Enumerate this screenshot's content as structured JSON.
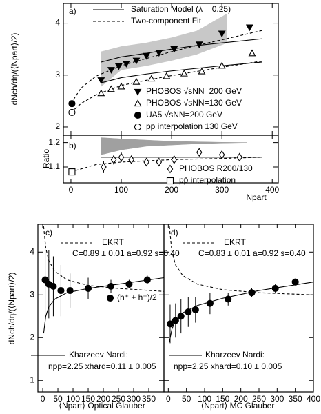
{
  "chart_data": [
    {
      "type": "scatter",
      "panel_label": "a)",
      "ylabel": "dNch/dη/(⟨Npart⟩/2)",
      "xlim": [
        -15,
        412
      ],
      "ylim": [
        1.84,
        4.38
      ],
      "xticks": [
        0,
        100,
        200,
        300,
        400
      ],
      "yticks": [
        2,
        3,
        4
      ],
      "bands": [
        {
          "color": "#c8c8c8",
          "x": [
            60,
            100,
            150,
            200,
            250,
            310
          ],
          "lower": [
            2.78,
            3.1,
            3.18,
            3.28,
            3.4,
            3.62
          ],
          "upper": [
            3.45,
            3.55,
            3.62,
            3.72,
            3.85,
            4.18
          ]
        }
      ],
      "lines": [
        {
          "name": "Saturation Model (λ = 0.25)",
          "dash": false,
          "x": [
            60,
            100,
            150,
            200,
            250,
            300,
            380
          ],
          "values": [
            3.25,
            3.35,
            3.42,
            3.5,
            3.57,
            3.62,
            3.7
          ]
        },
        {
          "name": "Two-component Fit",
          "dash": true,
          "x": [
            0,
            20,
            50,
            100,
            150,
            200,
            250,
            300,
            380
          ],
          "values": [
            2.45,
            2.75,
            2.98,
            3.18,
            3.32,
            3.45,
            3.57,
            3.68,
            3.86
          ]
        },
        {
          "dash": false,
          "x": [
            60,
            100,
            150,
            200,
            250,
            300,
            380
          ],
          "values": [
            2.85,
            2.95,
            3.02,
            3.08,
            3.13,
            3.18,
            3.25
          ]
        },
        {
          "dash": true,
          "x": [
            0,
            20,
            50,
            100,
            150,
            200,
            250,
            300,
            380
          ],
          "values": [
            2.28,
            2.45,
            2.62,
            2.8,
            2.9,
            2.99,
            3.07,
            3.15,
            3.27
          ]
        }
      ],
      "series": [
        {
          "name": "PHOBOS √sNN=200 GeV",
          "marker": "triangle-down",
          "filled": true,
          "color": "#000000",
          "x": [
            60,
            80,
            95,
            110,
            130,
            150,
            175,
            205,
            255,
            300,
            355
          ],
          "values": [
            2.9,
            3.1,
            3.17,
            3.22,
            3.28,
            3.37,
            3.43,
            3.5,
            3.59,
            3.8,
            3.92
          ]
        },
        {
          "name": "PHOBOS √sNN=130 GeV",
          "marker": "triangle-up",
          "filled": false,
          "color": "#000000",
          "x": [
            60,
            80,
            100,
            130,
            160,
            190,
            225,
            260,
            300,
            360
          ],
          "values": [
            2.65,
            2.73,
            2.78,
            2.87,
            2.93,
            2.98,
            3.03,
            3.07,
            3.18,
            3.42
          ]
        },
        {
          "name": "UA5 √sNN=200 GeV",
          "marker": "circle",
          "filled": true,
          "color": "#000000",
          "x": [
            2
          ],
          "values": [
            2.45
          ]
        },
        {
          "name": "pp̄ interpolation 130 GeV",
          "marker": "circle",
          "filled": false,
          "color": "#000000",
          "x": [
            2
          ],
          "values": [
            2.28
          ]
        }
      ]
    },
    {
      "type": "scatter",
      "panel_label": "b)",
      "ylabel": "Ratio",
      "xlabel": "Npart",
      "xlim": [
        -15,
        412
      ],
      "ylim": [
        1.035,
        1.23
      ],
      "xticks": [
        0,
        100,
        200,
        300,
        400
      ],
      "yticks": [
        1.1,
        1.2
      ],
      "bands": [
        {
          "color": "#a0a0a0",
          "x": [
            60,
            100,
            150,
            200,
            250,
            300,
            350
          ],
          "lower": [
            1.15,
            1.17,
            1.185,
            1.19,
            1.195,
            1.198,
            1.2
          ],
          "upper": [
            1.22,
            1.215,
            1.21,
            1.205,
            1.203,
            1.201,
            1.2
          ]
        }
      ],
      "lines": [
        {
          "dash": false,
          "x": [
            60,
            380
          ],
          "values": [
            1.14,
            1.14
          ]
        },
        {
          "dash": true,
          "x": [
            0,
            50,
            100,
            150,
            200,
            300,
            380
          ],
          "values": [
            1.08,
            1.11,
            1.12,
            1.125,
            1.13,
            1.135,
            1.14
          ]
        }
      ],
      "series": [
        {
          "name": "PHOBOS R200/130",
          "marker": "diamond",
          "filled": false,
          "color": "#000000",
          "x": [
            65,
            85,
            100,
            120,
            150,
            175,
            205,
            255,
            300,
            335
          ],
          "values": [
            1.1,
            1.13,
            1.14,
            1.13,
            1.12,
            1.12,
            1.13,
            1.16,
            1.15,
            1.14
          ],
          "errors": [
            0.025,
            0.02,
            0.02,
            0.015,
            0.015,
            0.015,
            0.015,
            0.015,
            0.015,
            0.015
          ]
        },
        {
          "name": "pp̄ interpolation",
          "marker": "square",
          "filled": false,
          "color": "#000000",
          "x": [
            2
          ],
          "values": [
            1.08
          ]
        }
      ]
    },
    {
      "type": "scatter",
      "panel_label": "c)",
      "ylabel": "dNch/dη/(⟨Npart⟩/2)",
      "xlabel": "⟨Npart⟩ Optical Glauber",
      "xlim": [
        -16,
        400
      ],
      "ylim": [
        0.73,
        4.65
      ],
      "xticks": [
        0,
        50,
        100,
        150,
        200,
        250,
        300,
        350
      ],
      "yticks": [
        1,
        2,
        3,
        4
      ],
      "annotations": [
        "C=0.89 ± 0.01  a=0.92  s=0.40",
        "npp=2.25   xhard=0.11 ± 0.005"
      ],
      "lines": [
        {
          "name": "EKRT",
          "dash": true,
          "x": [
            3,
            10,
            20,
            40,
            80,
            150,
            250,
            400
          ],
          "values": [
            4.6,
            4.1,
            3.8,
            3.55,
            3.35,
            3.22,
            3.15,
            3.08
          ]
        },
        {
          "name": "Kharzeev Nardi:",
          "dash": false,
          "x": [
            3,
            10,
            20,
            40,
            80,
            150,
            250,
            400
          ],
          "values": [
            2.1,
            2.5,
            2.72,
            2.9,
            3.05,
            3.15,
            3.25,
            3.4
          ]
        }
      ],
      "series": [
        {
          "name": "(h⁺ + h⁻)/2",
          "marker": "circle",
          "filled": true,
          "color": "#000000",
          "x": [
            8,
            20,
            35,
            60,
            90,
            150,
            225,
            285,
            345
          ],
          "values": [
            3.35,
            3.25,
            3.2,
            3.1,
            3.1,
            3.15,
            3.2,
            3.25,
            3.35
          ],
          "errors": [
            0.9,
            0.8,
            0.7,
            0.6,
            0.4,
            0.25,
            0.15,
            0.1,
            0.1
          ]
        }
      ]
    },
    {
      "type": "scatter",
      "panel_label": "d)",
      "xlabel": "⟨Npart⟩ MC Glauber",
      "xlim": [
        -12,
        400
      ],
      "ylim": [
        0.73,
        4.65
      ],
      "xticks": [
        0,
        50,
        100,
        150,
        200,
        250,
        300,
        350,
        400
      ],
      "yticks": [
        1,
        2,
        3,
        4
      ],
      "annotations": [
        "C=0.83 ± 0.01  a=0.92  s=0.40",
        "npp=2.25   xhard=0.10 ± 0.005"
      ],
      "lines": [
        {
          "name": "EKRT",
          "dash": true,
          "x": [
            3,
            10,
            20,
            40,
            80,
            150,
            250,
            400
          ],
          "values": [
            4.6,
            4.0,
            3.7,
            3.45,
            3.25,
            3.12,
            3.05,
            3.0
          ]
        },
        {
          "name": "Kharzeev Nardi:",
          "dash": false,
          "x": [
            3,
            10,
            20,
            40,
            80,
            150,
            250,
            400
          ],
          "values": [
            1.9,
            2.2,
            2.4,
            2.58,
            2.75,
            2.92,
            3.1,
            3.3
          ]
        }
      ],
      "series": [
        {
          "marker": "circle",
          "filled": true,
          "color": "#000000",
          "x": [
            5,
            20,
            35,
            55,
            75,
            115,
            165,
            230,
            295,
            350
          ],
          "values": [
            2.32,
            2.4,
            2.5,
            2.6,
            2.65,
            2.8,
            2.9,
            3.05,
            3.15,
            3.3
          ],
          "errors": [
            0.45,
            0.4,
            0.4,
            0.35,
            0.3,
            0.25,
            0.15,
            0.1,
            0.1,
            0.05
          ]
        }
      ]
    }
  ]
}
